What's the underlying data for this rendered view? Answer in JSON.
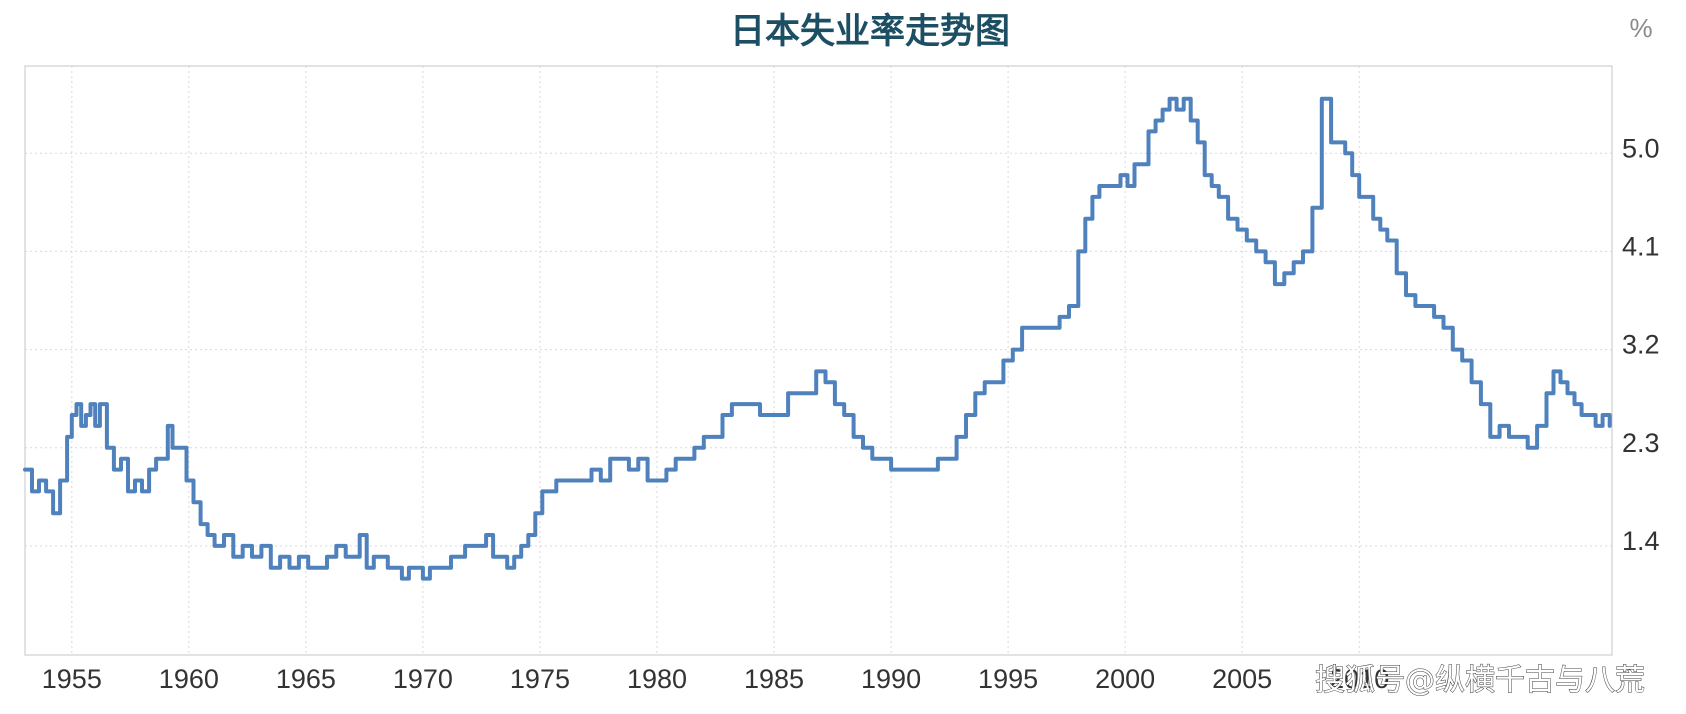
{
  "chart_data": {
    "type": "line",
    "title": "日本失业率走势图",
    "unit_label": "%",
    "xlabel": "",
    "ylabel": "",
    "x_ticks": [
      "1955",
      "1960",
      "1965",
      "1970",
      "1975",
      "1980",
      "1985",
      "1990",
      "1995",
      "2000",
      "2005",
      "2010"
    ],
    "y_ticks": [
      "1.4",
      "2.3",
      "3.2",
      "4.1",
      "5.0"
    ],
    "xlim": [
      1953.0,
      2020.8
    ],
    "ylim": [
      0.4,
      5.8
    ],
    "grid": true,
    "series": [
      {
        "color": "#4f81bd",
        "x": [
          1953.0,
          1953.3,
          1953.6,
          1953.9,
          1954.2,
          1954.5,
          1954.8,
          1955.0,
          1955.2,
          1955.4,
          1955.6,
          1955.8,
          1956.0,
          1956.2,
          1956.5,
          1956.8,
          1957.1,
          1957.4,
          1957.7,
          1958.0,
          1958.3,
          1958.6,
          1958.9,
          1959.1,
          1959.3,
          1959.6,
          1959.9,
          1960.2,
          1960.5,
          1960.8,
          1961.1,
          1961.5,
          1961.9,
          1962.3,
          1962.7,
          1963.1,
          1963.5,
          1963.9,
          1964.3,
          1964.7,
          1965.1,
          1965.5,
          1965.9,
          1966.3,
          1966.7,
          1967.0,
          1967.3,
          1967.6,
          1967.9,
          1968.2,
          1968.5,
          1968.8,
          1969.1,
          1969.4,
          1969.7,
          1970.0,
          1970.3,
          1970.6,
          1970.9,
          1971.2,
          1971.5,
          1971.8,
          1972.1,
          1972.4,
          1972.7,
          1973.0,
          1973.3,
          1973.6,
          1973.9,
          1974.2,
          1974.5,
          1974.8,
          1975.1,
          1975.4,
          1975.7,
          1976.0,
          1976.4,
          1976.8,
          1977.2,
          1977.6,
          1978.0,
          1978.4,
          1978.8,
          1979.2,
          1979.6,
          1980.0,
          1980.4,
          1980.8,
          1981.2,
          1981.6,
          1982.0,
          1982.4,
          1982.8,
          1983.2,
          1983.6,
          1984.0,
          1984.4,
          1984.8,
          1985.2,
          1985.6,
          1986.0,
          1986.4,
          1986.8,
          1987.2,
          1987.6,
          1988.0,
          1988.4,
          1988.8,
          1989.2,
          1989.6,
          1990.0,
          1990.4,
          1990.8,
          1991.2,
          1991.6,
          1992.0,
          1992.4,
          1992.8,
          1993.2,
          1993.6,
          1994.0,
          1994.4,
          1994.8,
          1995.2,
          1995.6,
          1996.0,
          1996.4,
          1996.8,
          1997.2,
          1997.6,
          1998.0,
          1998.3,
          1998.6,
          1998.9,
          1999.2,
          1999.5,
          1999.8,
          2000.1,
          2000.4,
          2000.7,
          2001.0,
          2001.3,
          2001.6,
          2001.9,
          2002.2,
          2002.5,
          2002.8,
          2003.1,
          2003.4,
          2003.7,
          2004.0,
          2004.4,
          2004.8,
          2005.2,
          2005.6,
          2006.0,
          2006.4,
          2006.8,
          2007.2,
          2007.6,
          2008.0,
          2008.4,
          2008.8,
          2009.1,
          2009.4,
          2009.7,
          2010.0,
          2010.3,
          2010.6,
          2010.9,
          2011.2,
          2011.6,
          2012.0,
          2012.4,
          2012.8,
          2013.2,
          2013.6,
          2014.0,
          2014.4,
          2014.8,
          2015.2,
          2015.6,
          2016.0,
          2016.4,
          2016.8,
          2017.2,
          2017.6,
          2018.0,
          2018.3,
          2018.6,
          2018.9,
          2019.2,
          2019.5,
          2019.8,
          2020.1,
          2020.4,
          2020.7
        ],
        "y": [
          2.1,
          1.9,
          2.0,
          1.9,
          1.7,
          2.0,
          2.4,
          2.6,
          2.7,
          2.5,
          2.6,
          2.7,
          2.5,
          2.7,
          2.3,
          2.1,
          2.2,
          1.9,
          2.0,
          1.9,
          2.1,
          2.2,
          2.2,
          2.5,
          2.3,
          2.3,
          2.0,
          1.8,
          1.6,
          1.5,
          1.4,
          1.5,
          1.3,
          1.4,
          1.3,
          1.4,
          1.2,
          1.3,
          1.2,
          1.3,
          1.2,
          1.2,
          1.3,
          1.4,
          1.3,
          1.3,
          1.5,
          1.2,
          1.3,
          1.3,
          1.2,
          1.2,
          1.1,
          1.2,
          1.2,
          1.1,
          1.2,
          1.2,
          1.2,
          1.3,
          1.3,
          1.4,
          1.4,
          1.4,
          1.5,
          1.3,
          1.3,
          1.2,
          1.3,
          1.4,
          1.5,
          1.7,
          1.9,
          1.9,
          2.0,
          2.0,
          2.0,
          2.0,
          2.1,
          2.0,
          2.2,
          2.2,
          2.1,
          2.2,
          2.0,
          2.0,
          2.1,
          2.2,
          2.2,
          2.3,
          2.4,
          2.4,
          2.6,
          2.7,
          2.7,
          2.7,
          2.6,
          2.6,
          2.6,
          2.8,
          2.8,
          2.8,
          3.0,
          2.9,
          2.7,
          2.6,
          2.4,
          2.3,
          2.2,
          2.2,
          2.1,
          2.1,
          2.1,
          2.1,
          2.1,
          2.2,
          2.2,
          2.4,
          2.6,
          2.8,
          2.9,
          2.9,
          3.1,
          3.2,
          3.4,
          3.4,
          3.4,
          3.4,
          3.5,
          3.6,
          4.1,
          4.4,
          4.6,
          4.7,
          4.7,
          4.7,
          4.8,
          4.7,
          4.9,
          4.9,
          5.2,
          5.3,
          5.4,
          5.5,
          5.4,
          5.5,
          5.3,
          5.1,
          4.8,
          4.7,
          4.6,
          4.4,
          4.3,
          4.2,
          4.1,
          4.0,
          3.8,
          3.9,
          4.0,
          4.1,
          4.5,
          5.5,
          5.1,
          5.1,
          5.0,
          4.8,
          4.6,
          4.6,
          4.4,
          4.3,
          4.2,
          3.9,
          3.7,
          3.6,
          3.6,
          3.5,
          3.4,
          3.2,
          3.1,
          2.9,
          2.7,
          2.4,
          2.5,
          2.4,
          2.4,
          2.3,
          2.5,
          2.8,
          3.0,
          2.9,
          2.8,
          2.7,
          2.6,
          2.6,
          2.5,
          2.6,
          2.5
        ]
      }
    ]
  },
  "watermark": "搜狐号@纵横千古与八荒"
}
